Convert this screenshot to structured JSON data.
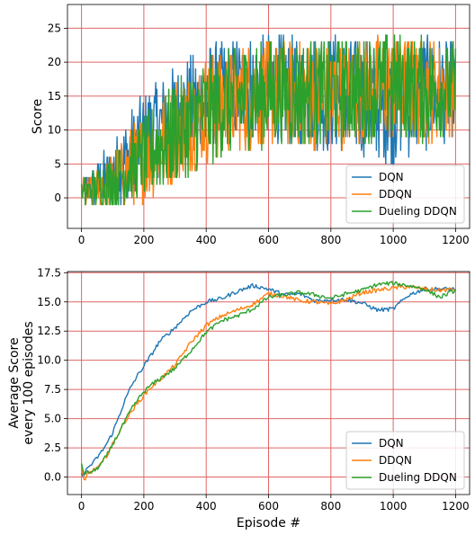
{
  "chart_data": [
    {
      "type": "line",
      "title": "",
      "xlabel": "",
      "ylabel": "Score",
      "xlim": [
        -45,
        1245
      ],
      "ylim": [
        -4.5,
        28.5
      ],
      "xticks": [
        0,
        200,
        400,
        600,
        800,
        1000,
        1200
      ],
      "yticks": [
        0,
        5,
        10,
        15,
        20,
        25
      ],
      "grid": true,
      "grid_color": "#e06666",
      "legend_position": "lower-right",
      "series": [
        {
          "name": "DQN",
          "color": "#1f77b4",
          "x": [
            0,
            100,
            200,
            300,
            400,
            500,
            600,
            700,
            800,
            900,
            1000,
            1100,
            1200
          ],
          "y_center": [
            0.5,
            3.5,
            9,
            12,
            14.5,
            16,
            16.5,
            15.5,
            15.5,
            14.5,
            14,
            15.5,
            16
          ],
          "y_spread": [
            2,
            5,
            7,
            8,
            8,
            8,
            8,
            8,
            9,
            9,
            9,
            9,
            7
          ]
        },
        {
          "name": "DDQN",
          "color": "#ff7f0e",
          "x": [
            0,
            100,
            200,
            300,
            400,
            500,
            600,
            700,
            800,
            900,
            1000,
            1100,
            1200
          ],
          "y_center": [
            0.5,
            2.5,
            6,
            10,
            13,
            14.5,
            15.5,
            15,
            15,
            16,
            16,
            16,
            16
          ],
          "y_spread": [
            2,
            4,
            7,
            8,
            8,
            8,
            8,
            8,
            8,
            8,
            8,
            8,
            7
          ]
        },
        {
          "name": "Dueling DDQN",
          "color": "#2ca02c",
          "x": [
            0,
            100,
            200,
            300,
            400,
            500,
            600,
            700,
            800,
            900,
            1000,
            1100,
            1200
          ],
          "y_center": [
            0.5,
            2.5,
            6,
            9.5,
            12.5,
            14.5,
            15.5,
            15.5,
            15.5,
            16,
            16.5,
            16,
            16
          ],
          "y_spread": [
            2,
            4,
            6,
            8,
            8,
            8,
            8,
            8,
            8,
            8,
            8,
            8,
            7
          ]
        }
      ]
    },
    {
      "type": "line",
      "title": "",
      "xlabel": "Episode #",
      "ylabel": "Average Score\nevery 100 episodes",
      "xlim": [
        -45,
        1245
      ],
      "ylim": [
        -1.5,
        17.6
      ],
      "xticks": [
        0,
        200,
        400,
        600,
        800,
        1000,
        1200
      ],
      "yticks": [
        0.0,
        2.5,
        5.0,
        7.5,
        10.0,
        12.5,
        15.0,
        17.5
      ],
      "grid": true,
      "grid_color": "#e06666",
      "legend_position": "lower-right",
      "series": [
        {
          "name": "DQN",
          "color": "#1f77b4",
          "x": [
            0,
            10,
            20,
            40,
            60,
            80,
            100,
            120,
            140,
            160,
            180,
            200,
            220,
            250,
            300,
            350,
            400,
            450,
            500,
            550,
            600,
            650,
            700,
            750,
            800,
            850,
            900,
            950,
            1000,
            1050,
            1100,
            1150,
            1200
          ],
          "y": [
            0.2,
            0.3,
            0.8,
            1.3,
            2.0,
            2.8,
            3.8,
            5.2,
            6.6,
            7.8,
            8.7,
            9.5,
            10.3,
            11.6,
            12.8,
            14.2,
            15.0,
            15.3,
            15.9,
            16.4,
            16.1,
            15.6,
            15.7,
            15.1,
            15.2,
            15.2,
            14.9,
            14.3,
            14.4,
            15.6,
            16.1,
            16.1,
            16.1
          ]
        },
        {
          "name": "DDQN",
          "color": "#ff7f0e",
          "x": [
            0,
            10,
            20,
            40,
            60,
            80,
            100,
            120,
            140,
            160,
            180,
            200,
            220,
            250,
            300,
            350,
            400,
            450,
            500,
            550,
            600,
            650,
            700,
            750,
            800,
            850,
            900,
            950,
            1000,
            1050,
            1100,
            1150,
            1200
          ],
          "y": [
            0.6,
            -0.5,
            0.3,
            0.6,
            1.0,
            1.8,
            2.8,
            3.8,
            4.8,
            5.6,
            6.3,
            7.0,
            7.6,
            8.3,
            9.6,
            11.5,
            13.0,
            13.8,
            14.3,
            14.8,
            15.7,
            15.5,
            15.1,
            15.0,
            14.8,
            15.2,
            15.8,
            16.0,
            16.2,
            16.3,
            16.1,
            16.0,
            16.1
          ]
        },
        {
          "name": "Dueling DDQN",
          "color": "#2ca02c",
          "x": [
            0,
            10,
            20,
            40,
            60,
            80,
            100,
            120,
            140,
            160,
            180,
            200,
            220,
            250,
            300,
            350,
            400,
            450,
            500,
            550,
            600,
            650,
            700,
            750,
            800,
            850,
            900,
            950,
            1000,
            1050,
            1100,
            1150,
            1200
          ],
          "y": [
            1.0,
            0.2,
            0.4,
            0.5,
            1.0,
            1.8,
            2.8,
            3.8,
            4.8,
            5.8,
            6.6,
            7.3,
            7.8,
            8.4,
            9.3,
            10.8,
            12.4,
            13.4,
            13.8,
            14.4,
            15.4,
            15.6,
            15.8,
            15.6,
            15.3,
            15.7,
            16.0,
            16.5,
            16.6,
            16.4,
            16.1,
            15.4,
            16.0
          ]
        }
      ]
    }
  ]
}
